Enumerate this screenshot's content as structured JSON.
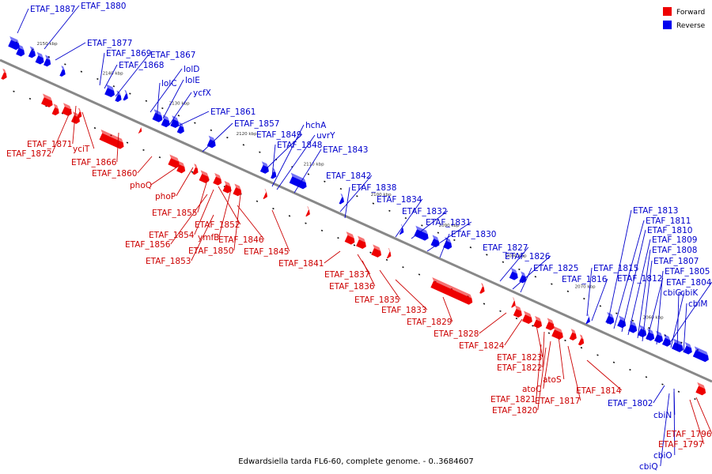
{
  "caption": "Edwardsiella tarda FL6-60, complete genome. - 0..3684607",
  "legend": [
    {
      "label": "Forward",
      "color": "#ee0000"
    },
    {
      "label": "Reverse",
      "color": "#0000ee"
    }
  ],
  "colors": {
    "forward_fill": "#ee0000",
    "reverse_fill": "#0000ee",
    "forward_line": "#cc0000",
    "reverse_line": "#0000cc",
    "axis": "#888888"
  },
  "ticks": [
    "2150 kbp",
    "2140 kbp",
    "2130 kbp",
    "2120 kbp",
    "2110 kbp",
    "2100 kbp",
    "2090 kbp",
    "2080 kbp",
    "2070 kbp",
    "2060 kbp"
  ],
  "forward_labels": [
    "ETAF_1871",
    "ETAF_1872",
    "yciT",
    "ETAF_1866",
    "ETAF_1860",
    "phoQ",
    "phoP",
    "ETAF_1855",
    "ETAF_1852",
    "ETAF_1854",
    "ETAF_1856",
    "ymfB",
    "ETAF_1850",
    "ETAF_1846",
    "ETAF_1853",
    "ETAF_1845",
    "ETAF_1841",
    "ETAF_1837",
    "ETAF_1836",
    "ETAF_1835",
    "ETAF_1833",
    "ETAF_1829",
    "ETAF_1828",
    "ETAF_1824",
    "ETAF_1823",
    "ETAF_1822",
    "atoS",
    "atoC",
    "ETAF_1821",
    "ETAF_1817",
    "ETAF_1814",
    "ETAF_1820",
    "ETAF_1796",
    "ETAF_1797"
  ],
  "reverse_labels": [
    "ETAF_1887",
    "ETAF_1880",
    "ETAF_1877",
    "ETAF_1869",
    "ETAF_1867",
    "ETAF_1868",
    "lolD",
    "lolC",
    "lolE",
    "ycfX",
    "ETAF_1861",
    "ETAF_1857",
    "ETAF_1849",
    "hchA",
    "uvrY",
    "ETAF_1848",
    "ETAF_1843",
    "ETAF_1842",
    "ETAF_1838",
    "ETAF_1834",
    "ETAF_1832",
    "ETAF_1831",
    "ETAF_1830",
    "ETAF_1827",
    "ETAF_1826",
    "ETAF_1825",
    "ETAF_1815",
    "ETAF_1816",
    "ETAF_1813",
    "ETAF_1811",
    "ETAF_1810",
    "ETAF_1809",
    "ETAF_1808",
    "ETAF_1807",
    "ETAF_1812",
    "ETAF_1805",
    "ETAF_1804",
    "cbiG",
    "cbiK",
    "cbiM",
    "ETAF_1802",
    "cbiN",
    "cbiO",
    "cbiQ"
  ]
}
